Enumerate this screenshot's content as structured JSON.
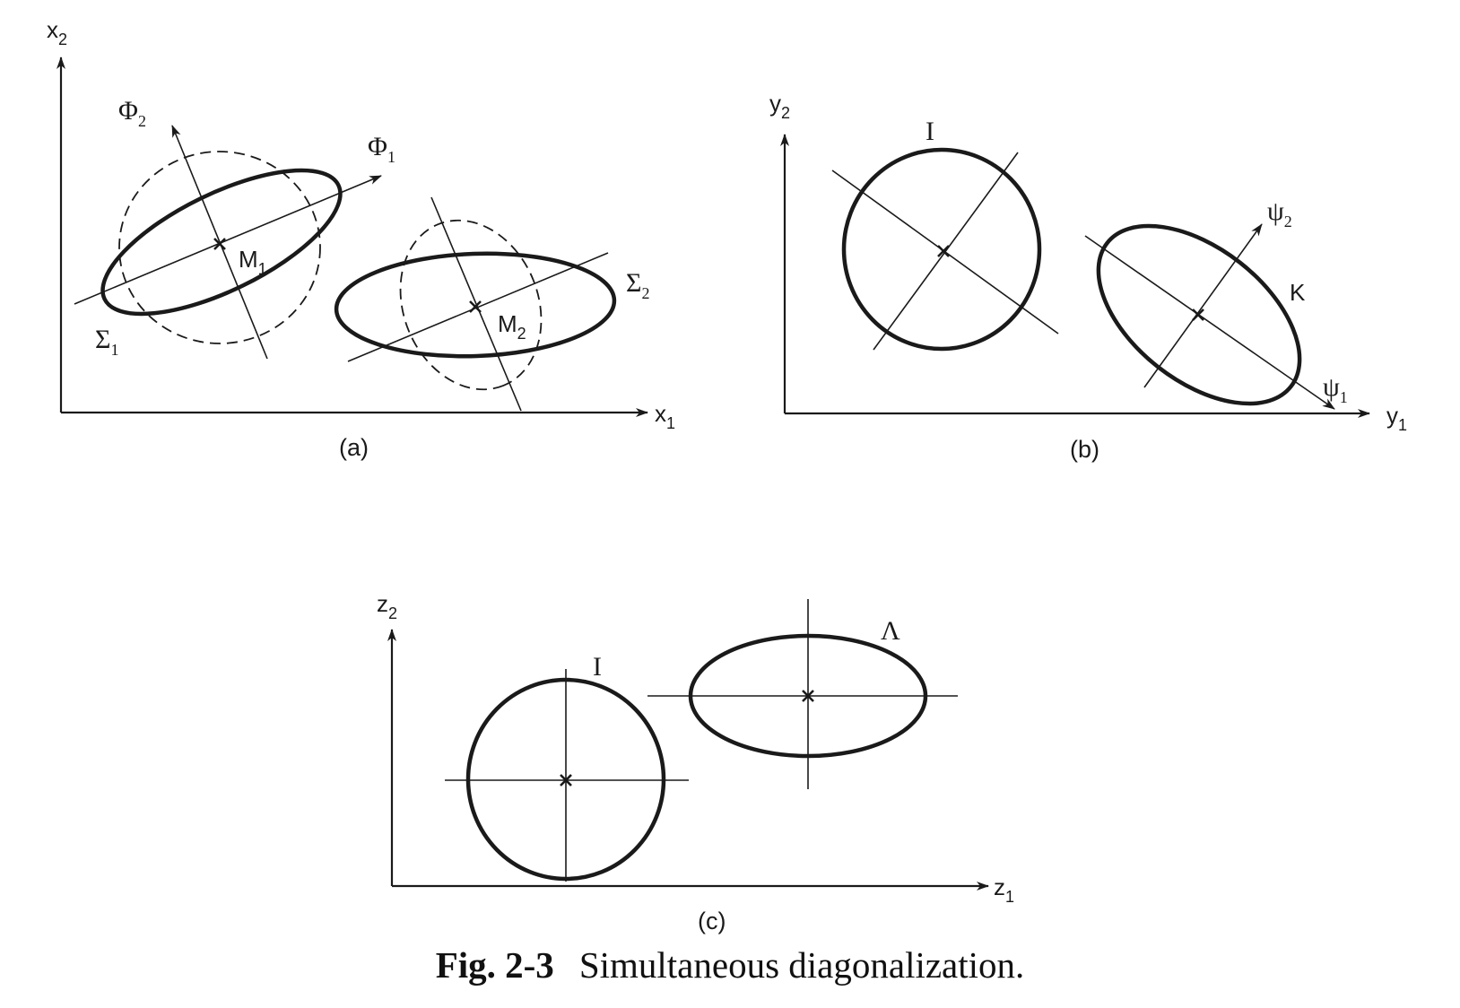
{
  "caption": {
    "number": "Fig. 2-3",
    "text": "Simultaneous diagonalization."
  },
  "panel_a": {
    "label": "(a)",
    "x_axis": "x",
    "x_axis_sub": "1",
    "y_axis": "x",
    "y_axis_sub": "2",
    "phi1": "Φ",
    "phi1_sub": "1",
    "phi2": "Φ",
    "phi2_sub": "2",
    "m1": "M",
    "m1_sub": "1",
    "m2": "M",
    "m2_sub": "2",
    "sigma1": "Σ",
    "sigma1_sub": "1",
    "sigma2": "Σ",
    "sigma2_sub": "2"
  },
  "panel_b": {
    "label": "(b)",
    "x_axis": "y",
    "x_axis_sub": "1",
    "y_axis": "y",
    "y_axis_sub": "2",
    "identity": "I",
    "k": "K",
    "psi1": "ψ",
    "psi1_sub": "1",
    "psi2": "ψ",
    "psi2_sub": "2"
  },
  "panel_c": {
    "label": "(c)",
    "x_axis": "z",
    "x_axis_sub": "1",
    "y_axis": "z",
    "y_axis_sub": "2",
    "identity": "I",
    "lambda": "Λ"
  }
}
